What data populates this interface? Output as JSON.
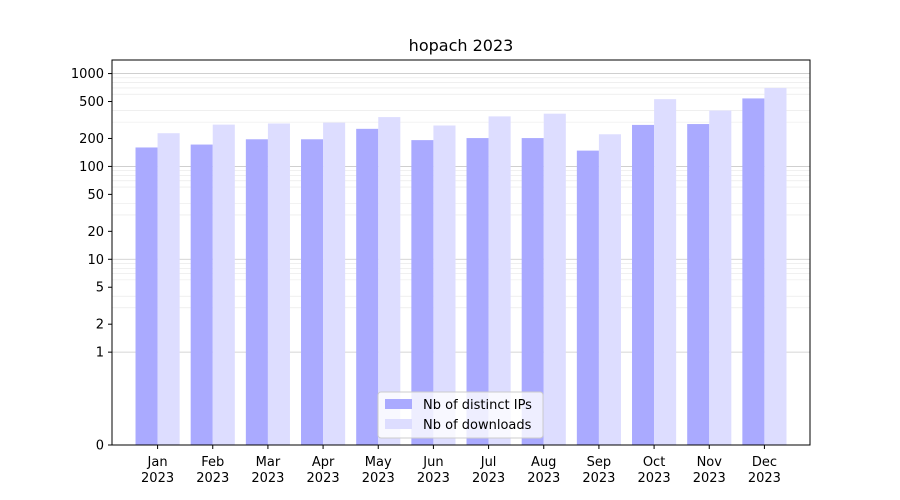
{
  "chart_data": {
    "type": "bar",
    "title": "hopach 2023",
    "xlabel": "",
    "ylabel": "",
    "categories": [
      [
        "Jan",
        "2023"
      ],
      [
        "Feb",
        "2023"
      ],
      [
        "Mar",
        "2023"
      ],
      [
        "Apr",
        "2023"
      ],
      [
        "May",
        "2023"
      ],
      [
        "Jun",
        "2023"
      ],
      [
        "Jul",
        "2023"
      ],
      [
        "Aug",
        "2023"
      ],
      [
        "Sep",
        "2023"
      ],
      [
        "Oct",
        "2023"
      ],
      [
        "Nov",
        "2023"
      ],
      [
        "Dec",
        "2023"
      ]
    ],
    "series": [
      {
        "name": "Nb of distinct IPs",
        "color": "#aaaaff",
        "values": [
          160,
          172,
          196,
          196,
          254,
          192,
          202,
          202,
          148,
          280,
          286,
          540
        ]
      },
      {
        "name": "Nb of downloads",
        "color": "#ddddff",
        "values": [
          228,
          282,
          290,
          296,
          340,
          276,
          346,
          370,
          222,
          530,
          400,
          700
        ]
      }
    ],
    "y_scale": "symlog",
    "ylim": [
      0,
      1400
    ],
    "y_ticks": [
      0,
      1,
      2,
      5,
      10,
      20,
      50,
      100,
      200,
      500,
      1000
    ],
    "y_tick_labels": [
      "0",
      "1",
      "2",
      "5",
      "10",
      "20",
      "50",
      "100",
      "200",
      "500",
      "1000"
    ],
    "grid": true,
    "legend_position": "lower-center"
  }
}
